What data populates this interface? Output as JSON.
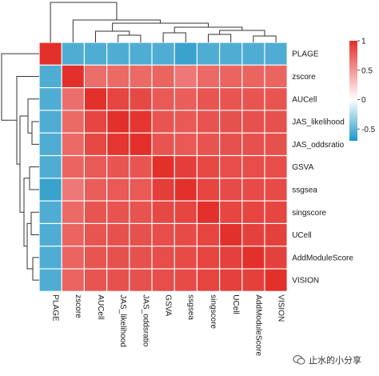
{
  "chart_data": {
    "type": "heatmap",
    "title": "",
    "rows": [
      "PLAGE",
      "zscore",
      "AUCell",
      "JAS_likelihood",
      "JAS_oddsratio",
      "GSVA",
      "ssgsea",
      "singscore",
      "UCell",
      "AddModuleScore",
      "VISION"
    ],
    "columns": [
      "PLAGE",
      "zscore",
      "AUCell",
      "JAS_likelihood",
      "JAS_oddsratio",
      "GSVA",
      "ssgsea",
      "singscore",
      "UCell",
      "AddModuleScore",
      "VISION"
    ],
    "values": [
      [
        1.0,
        -0.55,
        -0.55,
        -0.55,
        -0.55,
        -0.55,
        -0.62,
        -0.55,
        -0.55,
        -0.55,
        -0.55
      ],
      [
        -0.55,
        1.0,
        0.7,
        0.72,
        0.72,
        0.75,
        0.65,
        0.72,
        0.75,
        0.75,
        0.75
      ],
      [
        -0.55,
        0.7,
        1.0,
        0.9,
        0.88,
        0.8,
        0.78,
        0.82,
        0.82,
        0.82,
        0.82
      ],
      [
        -0.55,
        0.72,
        0.9,
        1.0,
        0.97,
        0.82,
        0.8,
        0.83,
        0.84,
        0.84,
        0.84
      ],
      [
        -0.55,
        0.72,
        0.88,
        0.97,
        1.0,
        0.82,
        0.8,
        0.83,
        0.84,
        0.84,
        0.84
      ],
      [
        -0.55,
        0.75,
        0.8,
        0.82,
        0.82,
        1.0,
        0.93,
        0.88,
        0.86,
        0.86,
        0.86
      ],
      [
        -0.62,
        0.65,
        0.78,
        0.8,
        0.8,
        0.93,
        1.0,
        0.9,
        0.87,
        0.87,
        0.87
      ],
      [
        -0.55,
        0.72,
        0.82,
        0.83,
        0.83,
        0.88,
        0.9,
        1.0,
        0.9,
        0.9,
        0.9
      ],
      [
        -0.55,
        0.75,
        0.82,
        0.84,
        0.84,
        0.86,
        0.87,
        0.9,
        1.0,
        0.92,
        0.92
      ],
      [
        -0.55,
        0.75,
        0.82,
        0.84,
        0.84,
        0.86,
        0.87,
        0.9,
        0.92,
        1.0,
        0.92
      ],
      [
        -0.55,
        0.75,
        0.82,
        0.84,
        0.84,
        0.86,
        0.87,
        0.9,
        0.92,
        0.92,
        1.0
      ]
    ],
    "colorbar": {
      "ticks": [
        1,
        0.5,
        0,
        -0.5
      ],
      "range": [
        -0.7,
        1.0
      ],
      "colors": {
        "low": "#1f97c8",
        "mid": "#ffffff",
        "high": "#e3302b"
      }
    },
    "dendrogram": {
      "top": true,
      "left": true
    }
  },
  "watermark": {
    "text": "止水的小分享"
  }
}
